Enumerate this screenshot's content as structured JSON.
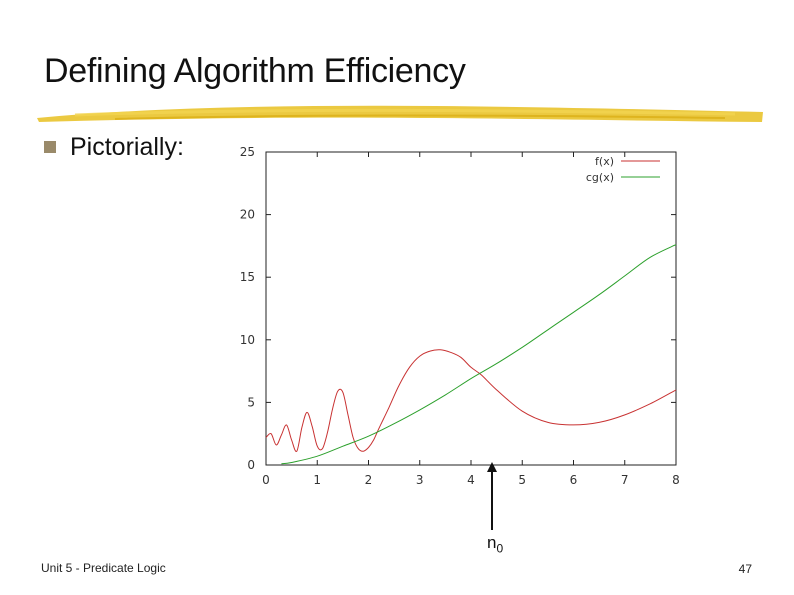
{
  "slide": {
    "title": "Defining Algorithm Efficiency",
    "bullet": "Pictorially:",
    "n0_base": "n",
    "n0_sub": "0",
    "footer_left": "Unit 5 - Predicate Logic",
    "page_number": "47"
  },
  "colors": {
    "title_underline": "#e8c020",
    "bullet": "#9a8a6a",
    "f_series": "#c83232",
    "cg_series": "#2ca02c"
  },
  "chart_data": {
    "type": "line",
    "title": "",
    "xlabel": "",
    "ylabel": "",
    "xlim": [
      0,
      8
    ],
    "ylim": [
      0,
      25
    ],
    "xticks": [
      0,
      1,
      2,
      3,
      4,
      5,
      6,
      7,
      8
    ],
    "yticks": [
      0,
      5,
      10,
      15,
      20,
      25
    ],
    "grid": false,
    "legend_position": "top-right",
    "annotation": "arrow marking n0 at x ≈ 4.4",
    "series": [
      {
        "name": "f(x)",
        "color": "#c83232",
        "x": [
          0,
          0.1,
          0.2,
          0.3,
          0.4,
          0.5,
          0.6,
          0.7,
          0.8,
          0.9,
          1.0,
          1.1,
          1.2,
          1.3,
          1.4,
          1.5,
          1.6,
          1.7,
          1.8,
          1.9,
          2.0,
          2.1,
          2.2,
          2.4,
          2.6,
          2.8,
          3.0,
          3.2,
          3.4,
          3.6,
          3.8,
          4.0,
          4.2,
          4.5,
          5.0,
          5.5,
          6.0,
          6.5,
          7.0,
          7.5,
          8.0
        ],
        "y": [
          2.2,
          2.5,
          1.6,
          2.4,
          3.2,
          2.0,
          1.1,
          3.0,
          4.2,
          3.1,
          1.5,
          1.3,
          2.6,
          4.5,
          5.9,
          5.8,
          4.0,
          2.2,
          1.3,
          1.1,
          1.4,
          2.0,
          2.9,
          4.6,
          6.4,
          7.8,
          8.7,
          9.1,
          9.2,
          9.0,
          8.6,
          7.8,
          7.2,
          6.0,
          4.3,
          3.4,
          3.2,
          3.4,
          4.0,
          4.9,
          6.0
        ]
      },
      {
        "name": "cg(x)",
        "color": "#2ca02c",
        "x": [
          0.3,
          0.5,
          1.0,
          1.5,
          2.0,
          2.5,
          3.0,
          3.5,
          4.0,
          4.5,
          5.0,
          5.5,
          6.0,
          6.5,
          7.0,
          7.5,
          8.0
        ],
        "y": [
          0.1,
          0.2,
          0.7,
          1.5,
          2.3,
          3.3,
          4.4,
          5.6,
          6.9,
          8.1,
          9.4,
          10.8,
          12.2,
          13.6,
          15.1,
          16.6,
          17.6
        ]
      }
    ]
  }
}
